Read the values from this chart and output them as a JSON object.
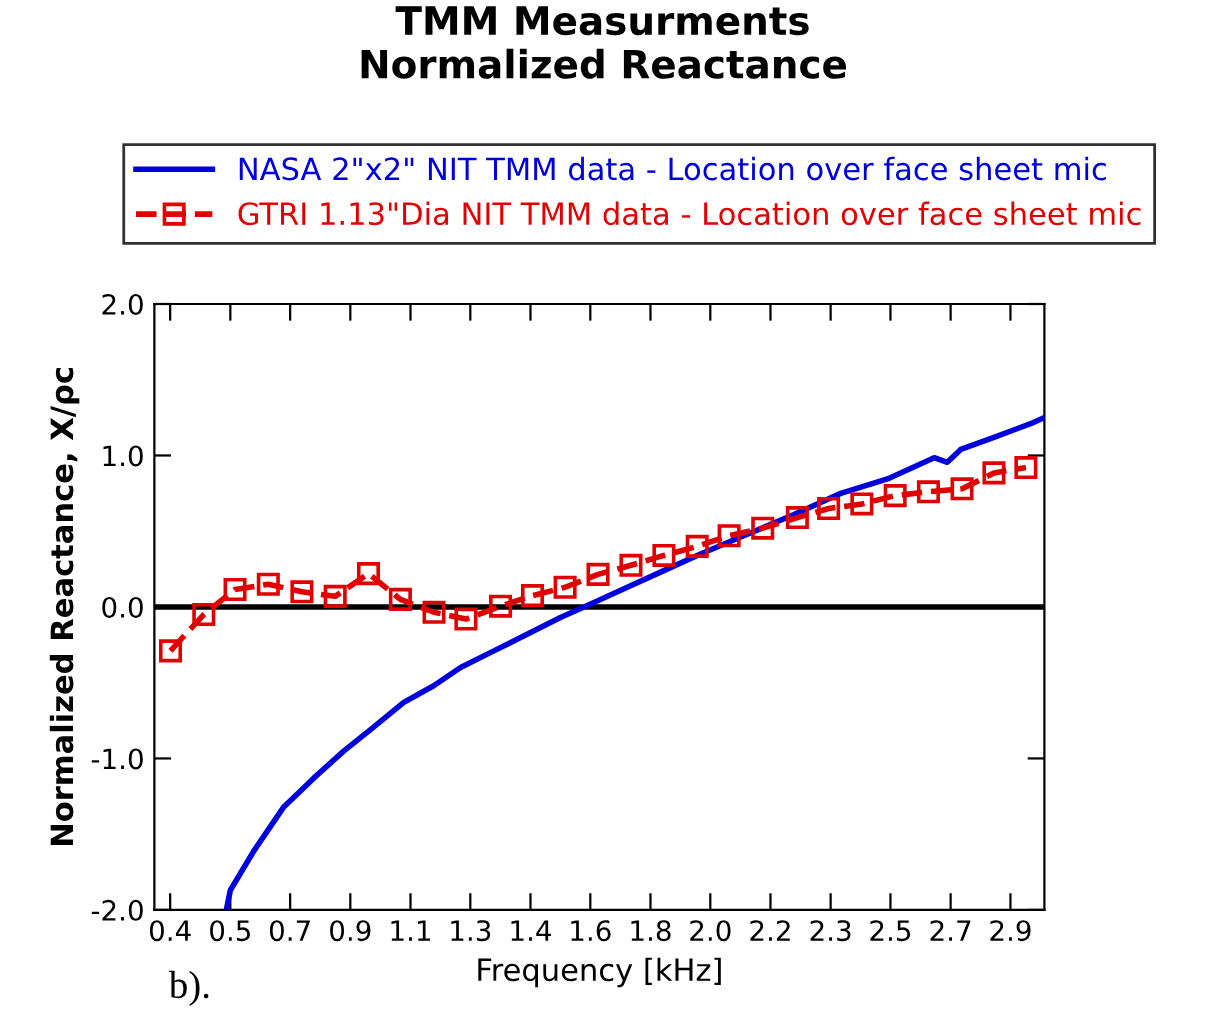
{
  "chart_data": {
    "type": "line",
    "title": "TMM Measurments\nNormalized Reactance",
    "xlabel": "Frequency [kHz]",
    "ylabel": "Normalized Reactance, X/ρc",
    "annotations": [
      "b)."
    ],
    "legend": "top",
    "grid": false,
    "xlim": [
      0.317,
      2.965
    ],
    "ylim": [
      -2.0,
      2.0
    ],
    "xticks": [
      {
        "value": 0.364,
        "label": "0.4"
      },
      {
        "value": 0.543,
        "label": "0.5"
      },
      {
        "value": 0.721,
        "label": "0.7"
      },
      {
        "value": 0.9,
        "label": "0.9"
      },
      {
        "value": 1.079,
        "label": "1.1"
      },
      {
        "value": 1.257,
        "label": "1.3"
      },
      {
        "value": 1.436,
        "label": "1.4"
      },
      {
        "value": 1.614,
        "label": "1.6"
      },
      {
        "value": 1.793,
        "label": "1.8"
      },
      {
        "value": 1.971,
        "label": "2.0"
      },
      {
        "value": 2.15,
        "label": "2.2"
      },
      {
        "value": 2.329,
        "label": "2.3"
      },
      {
        "value": 2.507,
        "label": "2.5"
      },
      {
        "value": 2.686,
        "label": "2.7"
      },
      {
        "value": 2.864,
        "label": "2.9"
      }
    ],
    "yticks": [
      {
        "value": -2.0,
        "label": "-2.0"
      },
      {
        "value": -1.0,
        "label": "-1.0"
      },
      {
        "value": 0.0,
        "label": "0.0"
      },
      {
        "value": 1.0,
        "label": "1.0"
      },
      {
        "value": 2.0,
        "label": "2.0"
      }
    ],
    "ref_lines": [
      {
        "axis": "y",
        "value": 0,
        "color": "#000000"
      }
    ],
    "series": [
      {
        "name": "NASA 2\"x2\" NIT TMM data - Location over face sheet mic",
        "color": "#0000dd",
        "marker": "none",
        "line_style": "solid",
        "x": [
          0.533,
          0.543,
          0.613,
          0.702,
          0.791,
          0.881,
          0.96,
          1.059,
          1.148,
          1.228,
          1.327,
          1.426,
          1.525,
          1.615,
          1.724,
          1.823,
          1.942,
          2.081,
          2.22,
          2.359,
          2.498,
          2.637,
          2.676,
          2.716,
          2.815,
          2.924,
          2.964
        ],
        "values": [
          -1.98,
          -1.87,
          -1.61,
          -1.32,
          -1.13,
          -0.95,
          -0.81,
          -0.63,
          -0.52,
          -0.4,
          -0.29,
          -0.18,
          -0.07,
          0.02,
          0.13,
          0.23,
          0.35,
          0.48,
          0.61,
          0.75,
          0.845,
          0.985,
          0.955,
          1.04,
          1.12,
          1.21,
          1.25
        ]
      },
      {
        "name": "GTRI 1.13\"Dia NIT TMM data - Location over face sheet mic",
        "color": "#e00000",
        "marker": "square",
        "line_style": "dashed",
        "x": [
          0.365,
          0.464,
          0.557,
          0.656,
          0.756,
          0.855,
          0.954,
          1.049,
          1.149,
          1.244,
          1.347,
          1.442,
          1.539,
          1.637,
          1.735,
          1.833,
          1.932,
          2.027,
          2.127,
          2.23,
          2.323,
          2.422,
          2.521,
          2.62,
          2.72,
          2.815,
          2.91
        ],
        "values": [
          -0.29,
          -0.05,
          0.115,
          0.15,
          0.1,
          0.07,
          0.22,
          0.05,
          -0.035,
          -0.08,
          0.005,
          0.075,
          0.13,
          0.215,
          0.275,
          0.34,
          0.4,
          0.47,
          0.52,
          0.59,
          0.65,
          0.68,
          0.735,
          0.76,
          0.78,
          0.885,
          0.92
        ]
      }
    ]
  }
}
